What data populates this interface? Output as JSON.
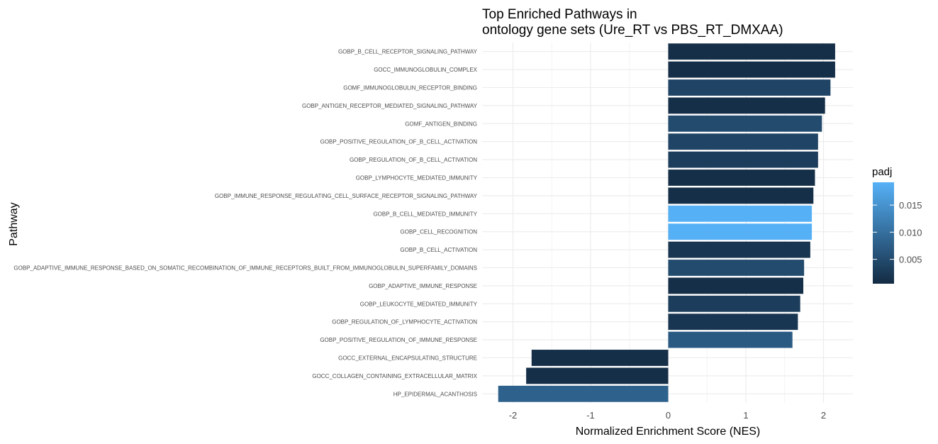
{
  "chart_data": {
    "type": "bar",
    "orientation": "horizontal",
    "title_line1": "Top Enriched Pathways in",
    "title_line2": "ontology gene sets (Ure_RT vs PBS_RT_DMXAA)",
    "xlabel": "Normalized Enrichment Score (NES)",
    "ylabel": "Pathway",
    "xlim": [
      -2.2,
      2.4
    ],
    "xticks": [
      "-2",
      "-1",
      "0",
      "1",
      "2"
    ],
    "grid": true,
    "legend": {
      "title": "padj",
      "placement": "right",
      "range": [
        0.0005,
        0.0192
      ],
      "ticks": [
        "0.005",
        "0.010",
        "0.015"
      ],
      "tick_values": [
        0.005,
        0.01,
        0.015
      ],
      "color_low": "#132b43",
      "color_high": "#56b1f7"
    },
    "categories": [
      "GOBP_B_CELL_RECEPTOR_SIGNALING_PATHWAY",
      "GOCC_IMMUNOGLOBULIN_COMPLEX",
      "GOMF_IMMUNOGLOBULIN_RECEPTOR_BINDING",
      "GOBP_ANTIGEN_RECEPTOR_MEDIATED_SIGNALING_PATHWAY",
      "GOMF_ANTIGEN_BINDING",
      "GOBP_POSITIVE_REGULATION_OF_B_CELL_ACTIVATION",
      "GOBP_REGULATION_OF_B_CELL_ACTIVATION",
      "GOBP_LYMPHOCYTE_MEDIATED_IMMUNITY",
      "GOBP_IMMUNE_RESPONSE_REGULATING_CELL_SURFACE_RECEPTOR_SIGNALING_PATHWAY",
      "GOBP_B_CELL_MEDIATED_IMMUNITY",
      "GOBP_CELL_RECOGNITION",
      "GOBP_B_CELL_ACTIVATION",
      "GOBP_ADAPTIVE_IMMUNE_RESPONSE_BASED_ON_SOMATIC_RECOMBINATION_OF_IMMUNE_RECEPTORS_BUILT_FROM_IMMUNOGLOBULIN_SUPERFAMILY_DOMAINS",
      "GOBP_ADAPTIVE_IMMUNE_RESPONSE",
      "GOBP_LEUKOCYTE_MEDIATED_IMMUNITY",
      "GOBP_REGULATION_OF_LYMPHOCYTE_ACTIVATION",
      "GOBP_POSITIVE_REGULATION_OF_IMMUNE_RESPONSE",
      "GOCC_EXTERNAL_ENCAPSULATING_STRUCTURE",
      "GOCC_COLLAGEN_CONTAINING_EXTRACELLULAR_MATRIX",
      "HP_EPIDERMAL_ACANTHOSIS"
    ],
    "values": [
      2.15,
      2.15,
      2.09,
      2.02,
      1.98,
      1.93,
      1.93,
      1.89,
      1.87,
      1.85,
      1.85,
      1.83,
      1.75,
      1.74,
      1.7,
      1.67,
      1.6,
      -1.76,
      -1.83,
      -2.19
    ],
    "padj": [
      0.001,
      0.001,
      0.004,
      0.001,
      0.005,
      0.004,
      0.003,
      0.001,
      0.001,
      0.019,
      0.019,
      0.002,
      0.005,
      0.001,
      0.003,
      0.002,
      0.007,
      0.001,
      0.001,
      0.008
    ]
  }
}
